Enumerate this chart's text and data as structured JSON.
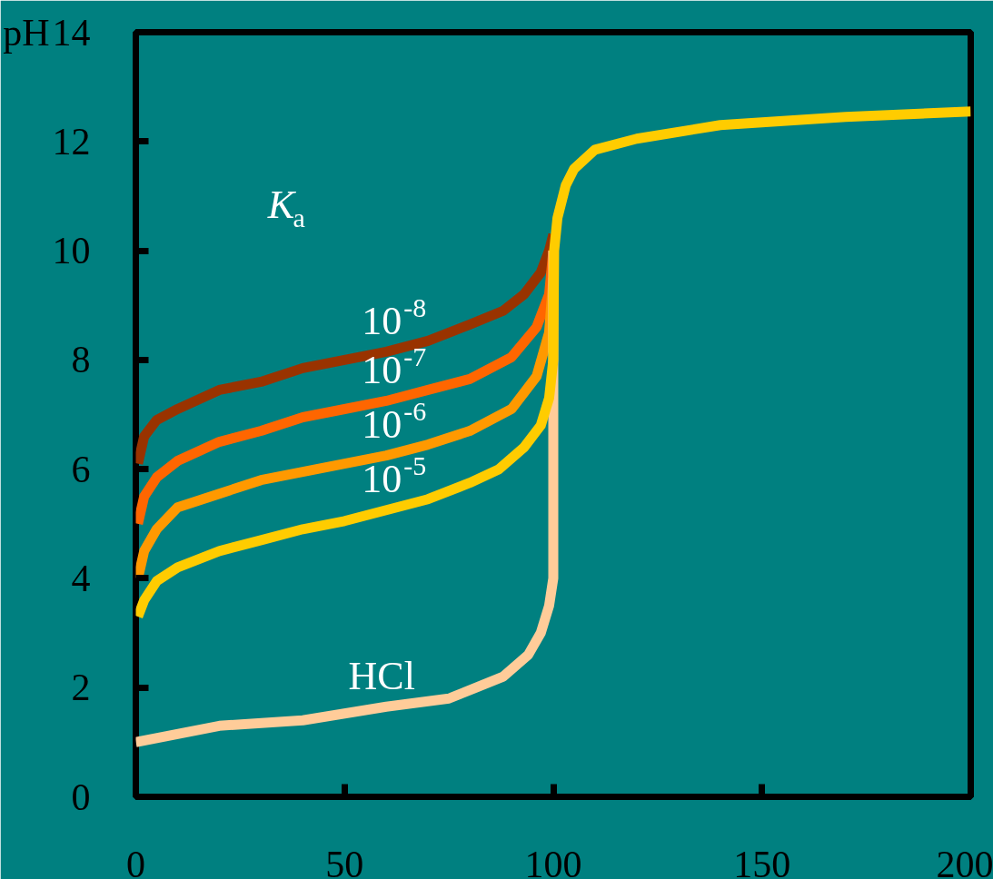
{
  "chart_data": {
    "type": "line",
    "ylabel": "pH",
    "xlim": [
      0,
      200
    ],
    "ylim": [
      0,
      14
    ],
    "xticks": [
      0,
      50,
      100,
      150,
      200
    ],
    "yticks": [
      0,
      2,
      4,
      6,
      8,
      10,
      12,
      14
    ],
    "grid": false,
    "marker": "none",
    "line_style": "solid",
    "series": [
      {
        "name": "10$^{-8}$",
        "color": "#993300",
        "x": [
          0.5,
          2,
          5,
          10,
          20,
          30,
          40,
          50,
          60,
          70,
          80,
          88,
          93,
          97,
          99,
          100
        ],
        "values": [
          6.1,
          6.6,
          6.9,
          7.1,
          7.45,
          7.6,
          7.85,
          8.0,
          8.15,
          8.35,
          8.65,
          8.9,
          9.2,
          9.6,
          10.0,
          10.3
        ]
      },
      {
        "name": "10$^{-7}$",
        "color": "#ff6600",
        "x": [
          0.5,
          2,
          5,
          10,
          20,
          30,
          40,
          50,
          60,
          70,
          80,
          90,
          96,
          99,
          100
        ],
        "values": [
          5.0,
          5.5,
          5.85,
          6.15,
          6.5,
          6.7,
          6.95,
          7.1,
          7.25,
          7.45,
          7.65,
          8.05,
          8.6,
          9.2,
          10.0
        ]
      },
      {
        "name": "10$^{-6}$",
        "color": "#ff9900",
        "x": [
          0.5,
          2,
          5,
          10,
          20,
          30,
          40,
          50,
          60,
          70,
          80,
          90,
          96,
          99,
          100
        ],
        "values": [
          4.0,
          4.5,
          4.9,
          5.3,
          5.55,
          5.8,
          5.95,
          6.1,
          6.25,
          6.45,
          6.7,
          7.1,
          7.7,
          8.5,
          9.5
        ]
      },
      {
        "name": "HCl",
        "color": "#ffcc99",
        "x": [
          0,
          20,
          40,
          60,
          75,
          88,
          94,
          97,
          99,
          99.8,
          100,
          100
        ],
        "values": [
          1.0,
          1.3,
          1.4,
          1.65,
          1.8,
          2.2,
          2.6,
          3.0,
          3.5,
          3.9,
          4.0,
          10.0
        ]
      },
      {
        "name": "10$^{-5}$",
        "color": "#ffcc00",
        "x": [
          0.5,
          2,
          5,
          10,
          20,
          30,
          40,
          50,
          60,
          70,
          80,
          87,
          93,
          97,
          99,
          100,
          100.2,
          101,
          103,
          105,
          110,
          120,
          140,
          170,
          200
        ],
        "values": [
          3.3,
          3.6,
          3.95,
          4.2,
          4.5,
          4.7,
          4.9,
          5.05,
          5.25,
          5.45,
          5.75,
          6.0,
          6.4,
          6.8,
          7.3,
          8.0,
          10.0,
          10.6,
          11.2,
          11.5,
          11.85,
          12.05,
          12.3,
          12.45,
          12.55
        ]
      }
    ],
    "annotations": [
      "K$_{a}$"
    ]
  }
}
